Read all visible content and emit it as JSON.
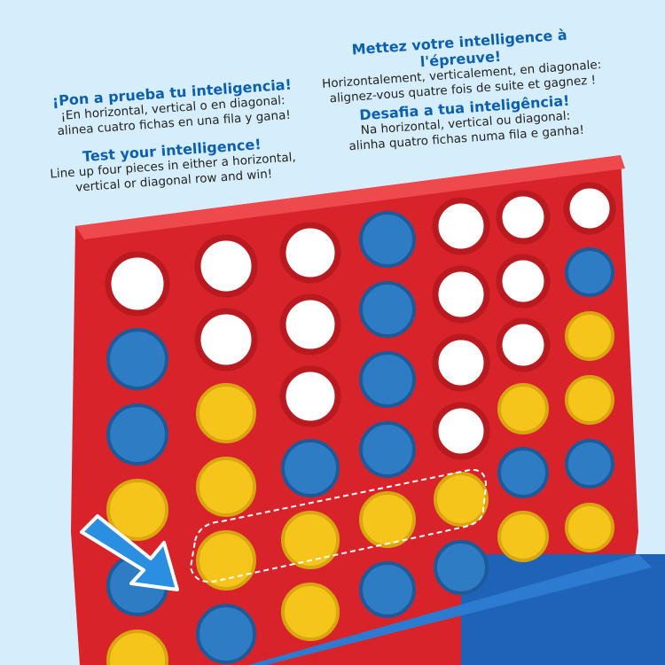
{
  "texts": {
    "es": {
      "heading": "¡Pon a prueba tu inteligencia!",
      "line1": "¡En horizontal, vertical o en diagonal:",
      "line2": "alinea cuatro fichas en una fila y gana!"
    },
    "en": {
      "heading": "Test your intelligence!",
      "line1": "Line up four pieces in either a horizontal,",
      "line2": "vertical or diagonal row and win!"
    },
    "fr": {
      "heading": "Mettez votre intelligence à l'épreuve!",
      "line1": "Horizontalement, verticalement, en diagonale:",
      "line2": "alignez-vous quatre fois de suite et gagnez !"
    },
    "pt": {
      "heading": "Desafia a tua inteligência!",
      "line1": "Na horizontal, vertical ou diagonal:",
      "line2": "alinha quatro fichas numa fila e ganha!"
    }
  },
  "colors": {
    "background": "#d6eefb",
    "board": "#d8232a",
    "red_piece": "#e0282e",
    "blue_piece": "#2e7cc4",
    "yellow_piece": "#f6c51c",
    "stand": "#1f63b8",
    "arrow": "#2a8fe0",
    "heading": "#0b5fae"
  },
  "board": {
    "columns": [
      [
        "empty",
        "blue",
        "blue",
        "yellow",
        "blue",
        "yellow"
      ],
      [
        "empty",
        "empty",
        "yellow",
        "yellow",
        "yellow",
        "blue"
      ],
      [
        "empty",
        "empty",
        "empty",
        "blue",
        "yellow",
        "yellow"
      ],
      [
        "blue",
        "blue",
        "blue",
        "blue",
        "yellow",
        "blue"
      ],
      [
        "empty",
        "empty",
        "empty",
        "empty",
        "yellow",
        "blue"
      ],
      [
        "empty",
        "empty",
        "empty",
        "yellow",
        "blue",
        "yellow"
      ],
      [
        "empty",
        "blue",
        "yellow",
        "yellow",
        "blue",
        "yellow"
      ]
    ],
    "highlighted_row": "diagonal line of four yellow pieces",
    "arrow_icon": "arrow-down-right-icon"
  }
}
